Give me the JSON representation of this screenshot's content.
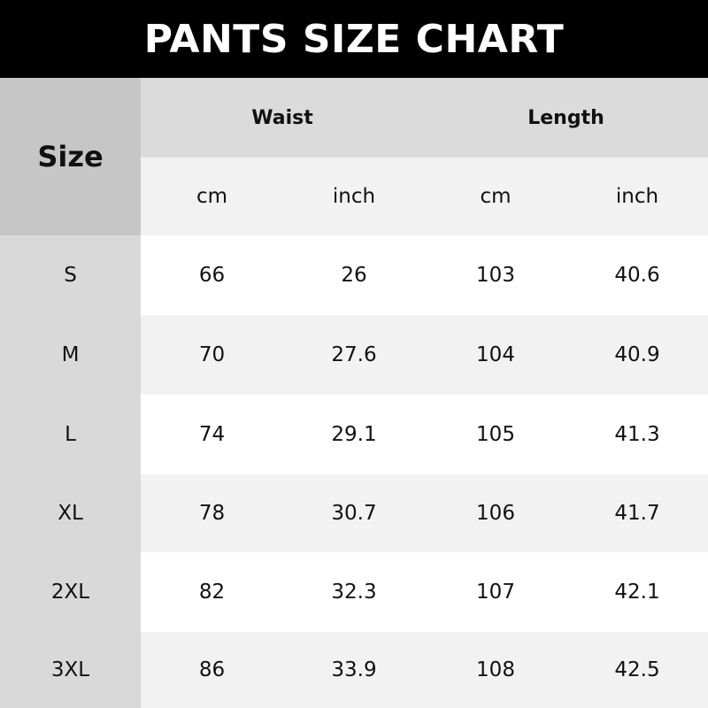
{
  "title": "PANTS SIZE CHART",
  "header": {
    "size": "Size",
    "groups": [
      "Waist",
      "Length"
    ],
    "units": [
      "cm",
      "inch",
      "cm",
      "inch"
    ]
  },
  "rows": [
    {
      "size": "S",
      "values": [
        "66",
        "26",
        "103",
        "40.6"
      ]
    },
    {
      "size": "M",
      "values": [
        "70",
        "27.6",
        "104",
        "40.9"
      ]
    },
    {
      "size": "L",
      "values": [
        "74",
        "29.1",
        "105",
        "41.3"
      ]
    },
    {
      "size": "XL",
      "values": [
        "78",
        "30.7",
        "106",
        "41.7"
      ]
    },
    {
      "size": "2XL",
      "values": [
        "82",
        "32.3",
        "107",
        "42.1"
      ]
    },
    {
      "size": "3XL",
      "values": [
        "86",
        "33.9",
        "108",
        "42.5"
      ]
    }
  ],
  "colors": {
    "title_bg": "#000000",
    "size_header": "#c6c6c6",
    "size_column": "#d9d9d9",
    "group_header": "#dbdbdb",
    "stripe": "#f2f2f2"
  }
}
